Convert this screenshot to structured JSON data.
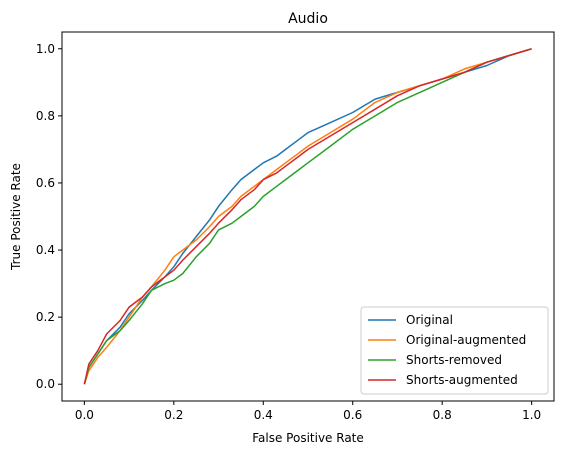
{
  "chart_data": {
    "type": "line",
    "title": "Audio",
    "xlabel": "False Positive Rate",
    "ylabel": "True Positive Rate",
    "xlim": [
      -0.05,
      1.05
    ],
    "ylim": [
      -0.05,
      1.05
    ],
    "xticks": [
      0.0,
      0.2,
      0.4,
      0.6,
      0.8,
      1.0
    ],
    "yticks": [
      0.0,
      0.2,
      0.4,
      0.6,
      0.8,
      1.0
    ],
    "tick_labels": [
      "0.0",
      "0.2",
      "0.4",
      "0.6",
      "0.8",
      "1.0"
    ],
    "grid": false,
    "legend_position": "lower-right",
    "series": [
      {
        "name": "Original",
        "color": "#1f77b4",
        "x": [
          0.0,
          0.01,
          0.03,
          0.05,
          0.08,
          0.1,
          0.13,
          0.15,
          0.18,
          0.2,
          0.22,
          0.25,
          0.28,
          0.3,
          0.33,
          0.35,
          0.38,
          0.4,
          0.43,
          0.45,
          0.48,
          0.5,
          0.55,
          0.6,
          0.65,
          0.7,
          0.75,
          0.8,
          0.85,
          0.9,
          0.95,
          1.0
        ],
        "y": [
          0.0,
          0.05,
          0.09,
          0.13,
          0.17,
          0.21,
          0.25,
          0.28,
          0.32,
          0.35,
          0.39,
          0.44,
          0.49,
          0.53,
          0.58,
          0.61,
          0.64,
          0.66,
          0.68,
          0.7,
          0.73,
          0.75,
          0.78,
          0.81,
          0.85,
          0.87,
          0.89,
          0.91,
          0.93,
          0.95,
          0.98,
          1.0
        ]
      },
      {
        "name": "Original-augmented",
        "color": "#ff7f0e",
        "x": [
          0.0,
          0.01,
          0.03,
          0.05,
          0.08,
          0.1,
          0.13,
          0.15,
          0.18,
          0.2,
          0.22,
          0.25,
          0.28,
          0.3,
          0.33,
          0.35,
          0.38,
          0.4,
          0.43,
          0.45,
          0.48,
          0.5,
          0.55,
          0.6,
          0.65,
          0.7,
          0.75,
          0.8,
          0.85,
          0.9,
          0.95,
          1.0
        ],
        "y": [
          0.0,
          0.04,
          0.08,
          0.11,
          0.16,
          0.2,
          0.26,
          0.29,
          0.34,
          0.38,
          0.4,
          0.43,
          0.47,
          0.5,
          0.53,
          0.56,
          0.59,
          0.61,
          0.64,
          0.66,
          0.69,
          0.71,
          0.75,
          0.79,
          0.84,
          0.87,
          0.89,
          0.91,
          0.94,
          0.96,
          0.98,
          1.0
        ]
      },
      {
        "name": "Shorts-removed",
        "color": "#2ca02c",
        "x": [
          0.0,
          0.01,
          0.03,
          0.05,
          0.08,
          0.1,
          0.13,
          0.15,
          0.18,
          0.2,
          0.22,
          0.25,
          0.28,
          0.3,
          0.33,
          0.35,
          0.38,
          0.4,
          0.43,
          0.45,
          0.48,
          0.5,
          0.55,
          0.6,
          0.65,
          0.7,
          0.75,
          0.8,
          0.85,
          0.9,
          0.95,
          1.0
        ],
        "y": [
          0.0,
          0.05,
          0.09,
          0.13,
          0.16,
          0.19,
          0.24,
          0.28,
          0.3,
          0.31,
          0.33,
          0.38,
          0.42,
          0.46,
          0.48,
          0.5,
          0.53,
          0.56,
          0.59,
          0.61,
          0.64,
          0.66,
          0.71,
          0.76,
          0.8,
          0.84,
          0.87,
          0.9,
          0.93,
          0.96,
          0.98,
          1.0
        ]
      },
      {
        "name": "Shorts-augmented",
        "color": "#d62728",
        "x": [
          0.0,
          0.01,
          0.03,
          0.05,
          0.08,
          0.1,
          0.13,
          0.15,
          0.18,
          0.2,
          0.22,
          0.25,
          0.28,
          0.3,
          0.33,
          0.35,
          0.38,
          0.4,
          0.43,
          0.45,
          0.48,
          0.5,
          0.55,
          0.6,
          0.65,
          0.7,
          0.75,
          0.8,
          0.85,
          0.9,
          0.95,
          1.0
        ],
        "y": [
          0.0,
          0.06,
          0.1,
          0.15,
          0.19,
          0.23,
          0.26,
          0.29,
          0.32,
          0.34,
          0.37,
          0.41,
          0.45,
          0.48,
          0.52,
          0.55,
          0.58,
          0.61,
          0.63,
          0.65,
          0.68,
          0.7,
          0.74,
          0.78,
          0.82,
          0.86,
          0.89,
          0.91,
          0.93,
          0.96,
          0.98,
          1.0
        ]
      }
    ]
  }
}
